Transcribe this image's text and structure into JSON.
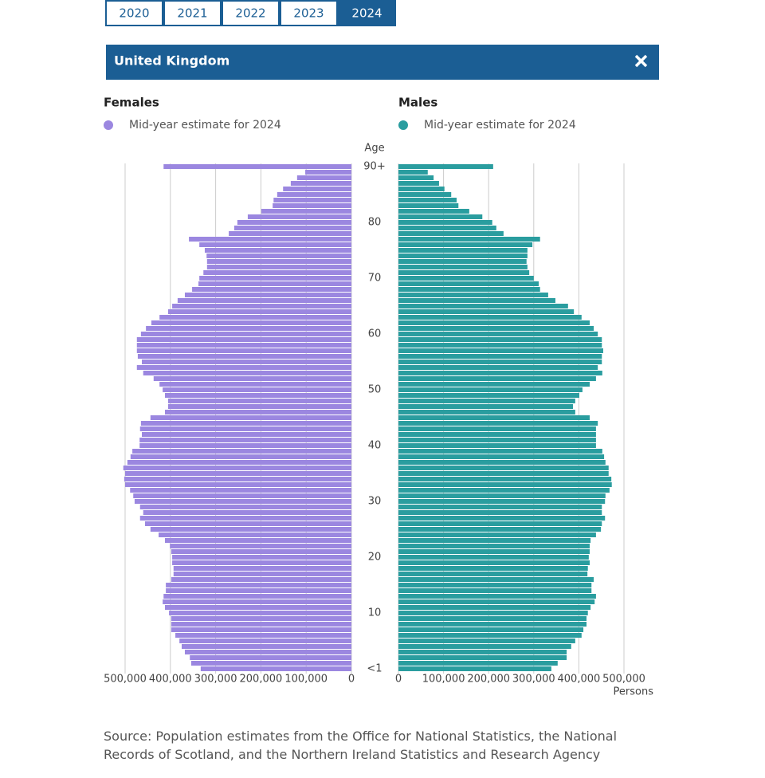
{
  "year_tabs": [
    "2020",
    "2021",
    "2022",
    "2023",
    "2024"
  ],
  "active_tab_index": 4,
  "panel_title": "United Kingdom",
  "chart_data": {
    "type": "pyramid",
    "y_label": "Age",
    "x_label": "Persons",
    "grid": true,
    "categories": [
      "<1",
      null,
      null,
      null,
      null,
      null,
      null,
      null,
      null,
      null,
      "10",
      null,
      null,
      null,
      null,
      null,
      null,
      null,
      null,
      null,
      "20",
      null,
      null,
      null,
      null,
      null,
      null,
      null,
      null,
      null,
      "30",
      null,
      null,
      null,
      null,
      null,
      null,
      null,
      null,
      null,
      "40",
      null,
      null,
      null,
      null,
      null,
      null,
      null,
      null,
      null,
      "50",
      null,
      null,
      null,
      null,
      null,
      null,
      null,
      null,
      null,
      "60",
      null,
      null,
      null,
      null,
      null,
      null,
      null,
      null,
      null,
      "70",
      null,
      null,
      null,
      null,
      null,
      null,
      null,
      null,
      null,
      "80",
      null,
      null,
      null,
      null,
      null,
      null,
      null,
      null,
      null,
      "90+"
    ],
    "panels": [
      {
        "title": "Females",
        "legend": "Mid-year estimate for 2024",
        "color": "#9b87e0",
        "xlim": [
          500000,
          0
        ],
        "xticks": [
          0,
          {
            "value": 100000,
            "label": "100,000"
          },
          {
            "value": 200000,
            "label": "200,000"
          },
          {
            "value": 300000,
            "label": "300,000"
          },
          {
            "value": 400000,
            "label": "400,000"
          },
          {
            "value": 500000,
            "label": "500,000"
          }
        ],
        "values": [
          333000,
          354000,
          357000,
          368000,
          375000,
          380000,
          389000,
          398000,
          398000,
          398000,
          403000,
          412000,
          417000,
          415000,
          410000,
          410000,
          398000,
          393000,
          393000,
          396000,
          396000,
          398000,
          401000,
          412000,
          426000,
          444000,
          456000,
          467000,
          460000,
          467000,
          479000,
          482000,
          489000,
          500000,
          502000,
          500000,
          504000,
          495000,
          488000,
          484000,
          468000,
          468000,
          463000,
          467000,
          465000,
          444000,
          412000,
          405000,
          405000,
          412000,
          417000,
          424000,
          437000,
          460000,
          474000,
          463000,
          472000,
          474000,
          474000,
          474000,
          465000,
          454000,
          442000,
          424000,
          405000,
          396000,
          384000,
          368000,
          352000,
          338000,
          336000,
          327000,
          319000,
          319000,
          320000,
          324000,
          336000,
          359000,
          271000,
          259000,
          252000,
          229000,
          199000,
          174000,
          172000,
          164000,
          151000,
          134000,
          120000,
          102000,
          415000
        ]
      },
      {
        "title": "Males",
        "legend": "Mid-year estimate for 2024",
        "color": "#2a9d9f",
        "xlim": [
          0,
          500000
        ],
        "xticks": [
          0,
          {
            "value": 100000,
            "label": "100,000"
          },
          {
            "value": 200000,
            "label": "200,000"
          },
          {
            "value": 300000,
            "label": "300,000"
          },
          {
            "value": 400000,
            "label": "400,000"
          },
          {
            "value": 500000,
            "label": "500,000"
          }
        ],
        "values": [
          339000,
          353000,
          373000,
          373000,
          383000,
          392000,
          406000,
          410000,
          417000,
          417000,
          420000,
          426000,
          435000,
          438000,
          428000,
          428000,
          433000,
          419000,
          420000,
          424000,
          422000,
          424000,
          424000,
          426000,
          438000,
          449000,
          451000,
          458000,
          451000,
          451000,
          458000,
          459000,
          468000,
          473000,
          472000,
          466000,
          466000,
          459000,
          456000,
          452000,
          438000,
          438000,
          438000,
          438000,
          442000,
          424000,
          392000,
          387000,
          392000,
          401000,
          408000,
          424000,
          438000,
          452000,
          442000,
          451000,
          451000,
          454000,
          451000,
          451000,
          442000,
          433000,
          424000,
          406000,
          389000,
          376000,
          348000,
          332000,
          314000,
          311000,
          300000,
          290000,
          286000,
          284000,
          286000,
          286000,
          297000,
          314000,
          233000,
          217000,
          208000,
          186000,
          157000,
          133000,
          129000,
          117000,
          102000,
          90000,
          78000,
          65000,
          210000
        ]
      }
    ]
  },
  "source": "Source: Population estimates from the Office for National Statistics, the National Records of Scotland, and the Northern Ireland Statistics and Research Agency"
}
